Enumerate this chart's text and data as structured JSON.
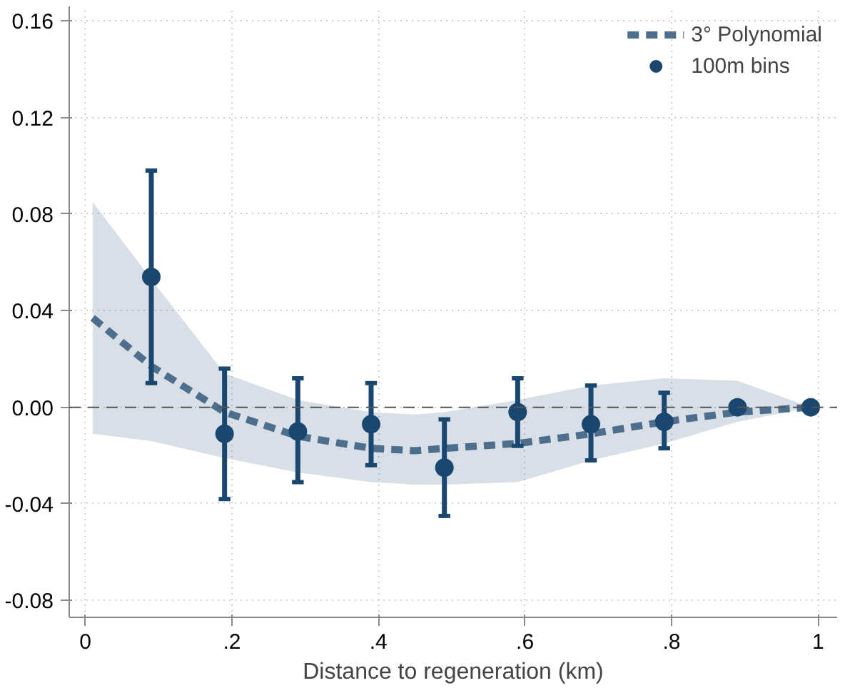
{
  "chart_data": {
    "type": "line",
    "xlabel": "Distance to regeneration (km)",
    "xlim": [
      -0.022,
      1.026
    ],
    "ylim": [
      -0.087,
      0.166
    ],
    "xticks": [
      0,
      {
        "value": 0.2,
        "label": ".2"
      },
      {
        "value": 0.4,
        "label": ".4"
      },
      {
        "value": 0.6,
        "label": ".6"
      },
      {
        "value": 0.8,
        "label": ".8"
      },
      1
    ],
    "yticks": [
      {
        "value": -0.08,
        "label": "-0.08"
      },
      {
        "value": -0.04,
        "label": "-0.04"
      },
      {
        "value": 0,
        "label": "0.00"
      },
      0.04,
      0.08,
      0.12,
      0.16
    ],
    "grid": true,
    "legend": "top right",
    "ref_lines": [
      {
        "axis": "y",
        "value": 0,
        "label": null,
        "color": "#555555",
        "line_style": "dashed"
      }
    ],
    "series": [
      {
        "name": "3° Polynomial",
        "line_style": "dashed",
        "marker": "none",
        "color": "#4e6e8e",
        "x": [
          0.01,
          0.09,
          0.19,
          0.29,
          0.39,
          0.45,
          0.49,
          0.59,
          0.69,
          0.79,
          0.89,
          0.99
        ],
        "values": [
          0.037,
          0.017,
          -0.002,
          -0.012,
          -0.017,
          -0.018,
          -0.017,
          -0.015,
          -0.011,
          -0.006,
          -0.002,
          0.0
        ],
        "lower": [
          -0.011,
          -0.014,
          -0.021,
          -0.027,
          -0.031,
          -0.032,
          -0.032,
          -0.031,
          -0.022,
          -0.015,
          -0.006,
          0.0
        ],
        "upper": [
          0.085,
          0.053,
          0.014,
          0.003,
          -0.002,
          -0.003,
          -0.002,
          0.003,
          0.009,
          0.012,
          0.011,
          0.0
        ]
      },
      {
        "name": "100m bins",
        "type": "scatter",
        "marker": "circle",
        "color": "#1a476f",
        "x": [
          0.09,
          0.19,
          0.29,
          0.39,
          0.49,
          0.59,
          0.69,
          0.79,
          0.89,
          0.99
        ],
        "values": [
          0.054,
          -0.011,
          -0.01,
          -0.007,
          -0.025,
          -0.002,
          -0.007,
          -0.006,
          0.0,
          0.0
        ],
        "errors": [
          [
            0.01,
            0.098
          ],
          [
            -0.038,
            0.016
          ],
          [
            -0.031,
            0.012
          ],
          [
            -0.024,
            0.01
          ],
          [
            -0.045,
            -0.005
          ],
          [
            -0.016,
            0.012
          ],
          [
            -0.022,
            0.009
          ],
          [
            -0.017,
            0.006
          ],
          null,
          null
        ]
      }
    ]
  }
}
